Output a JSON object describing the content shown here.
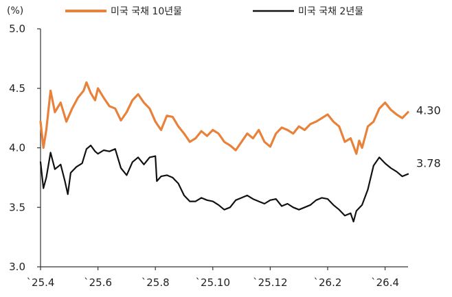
{
  "chart_data": {
    "type": "line",
    "unit_label": "(%)",
    "ylim": [
      3.0,
      5.0
    ],
    "y_ticks": [
      {
        "value": 3.0,
        "label": "3.0"
      },
      {
        "value": 3.5,
        "label": "3.5"
      },
      {
        "value": 4.0,
        "label": "4.0"
      },
      {
        "value": 4.5,
        "label": "4.5"
      },
      {
        "value": 5.0,
        "label": "5.0"
      }
    ],
    "x_ticks": [
      {
        "x": 0,
        "label": "`25.4"
      },
      {
        "x": 2,
        "label": "`25.6"
      },
      {
        "x": 4,
        "label": "`25.8"
      },
      {
        "x": 6,
        "label": "`25.10"
      },
      {
        "x": 8,
        "label": "`25.12"
      },
      {
        "x": 10,
        "label": "`26.2"
      },
      {
        "x": 12,
        "label": "`26.4"
      }
    ],
    "xlim": [
      0,
      12.8
    ],
    "grid": false,
    "legend_position": "top",
    "series": [
      {
        "name": "미국 국채 10년물",
        "color": "#E8823A",
        "end_label": "4.30",
        "points": [
          [
            0.0,
            4.22
          ],
          [
            0.1,
            4.0
          ],
          [
            0.2,
            4.15
          ],
          [
            0.35,
            4.48
          ],
          [
            0.5,
            4.3
          ],
          [
            0.7,
            4.38
          ],
          [
            0.9,
            4.22
          ],
          [
            1.1,
            4.33
          ],
          [
            1.3,
            4.42
          ],
          [
            1.5,
            4.48
          ],
          [
            1.6,
            4.55
          ],
          [
            1.75,
            4.46
          ],
          [
            1.9,
            4.4
          ],
          [
            2.0,
            4.5
          ],
          [
            2.2,
            4.42
          ],
          [
            2.4,
            4.35
          ],
          [
            2.6,
            4.33
          ],
          [
            2.8,
            4.23
          ],
          [
            3.0,
            4.3
          ],
          [
            3.2,
            4.4
          ],
          [
            3.4,
            4.45
          ],
          [
            3.6,
            4.38
          ],
          [
            3.8,
            4.33
          ],
          [
            4.0,
            4.22
          ],
          [
            4.2,
            4.15
          ],
          [
            4.4,
            4.27
          ],
          [
            4.6,
            4.26
          ],
          [
            4.8,
            4.18
          ],
          [
            5.0,
            4.12
          ],
          [
            5.2,
            4.05
          ],
          [
            5.4,
            4.08
          ],
          [
            5.6,
            4.14
          ],
          [
            5.8,
            4.1
          ],
          [
            6.0,
            4.15
          ],
          [
            6.2,
            4.12
          ],
          [
            6.4,
            4.05
          ],
          [
            6.6,
            4.02
          ],
          [
            6.8,
            3.98
          ],
          [
            7.0,
            4.05
          ],
          [
            7.2,
            4.12
          ],
          [
            7.4,
            4.08
          ],
          [
            7.6,
            4.15
          ],
          [
            7.8,
            4.05
          ],
          [
            8.0,
            4.01
          ],
          [
            8.2,
            4.12
          ],
          [
            8.4,
            4.17
          ],
          [
            8.6,
            4.15
          ],
          [
            8.8,
            4.12
          ],
          [
            9.0,
            4.18
          ],
          [
            9.2,
            4.15
          ],
          [
            9.4,
            4.2
          ],
          [
            9.6,
            4.22
          ],
          [
            9.8,
            4.25
          ],
          [
            10.0,
            4.28
          ],
          [
            10.2,
            4.22
          ],
          [
            10.4,
            4.18
          ],
          [
            10.6,
            4.05
          ],
          [
            10.8,
            4.08
          ],
          [
            11.0,
            3.95
          ],
          [
            11.1,
            4.06
          ],
          [
            11.2,
            4.0
          ],
          [
            11.4,
            4.18
          ],
          [
            11.6,
            4.22
          ],
          [
            11.8,
            4.33
          ],
          [
            12.0,
            4.38
          ],
          [
            12.2,
            4.32
          ],
          [
            12.4,
            4.28
          ],
          [
            12.6,
            4.25
          ],
          [
            12.8,
            4.3
          ]
        ]
      },
      {
        "name": "미국 국채 2년물",
        "color": "#111111",
        "end_label": "3.78",
        "points": [
          [
            0.0,
            3.88
          ],
          [
            0.1,
            3.66
          ],
          [
            0.2,
            3.75
          ],
          [
            0.35,
            3.96
          ],
          [
            0.5,
            3.82
          ],
          [
            0.7,
            3.86
          ],
          [
            0.85,
            3.72
          ],
          [
            0.95,
            3.61
          ],
          [
            1.05,
            3.79
          ],
          [
            1.25,
            3.84
          ],
          [
            1.45,
            3.87
          ],
          [
            1.6,
            3.99
          ],
          [
            1.75,
            4.02
          ],
          [
            1.9,
            3.97
          ],
          [
            2.0,
            3.95
          ],
          [
            2.2,
            3.98
          ],
          [
            2.4,
            3.97
          ],
          [
            2.6,
            3.99
          ],
          [
            2.8,
            3.83
          ],
          [
            3.0,
            3.77
          ],
          [
            3.2,
            3.88
          ],
          [
            3.4,
            3.92
          ],
          [
            3.6,
            3.86
          ],
          [
            3.8,
            3.92
          ],
          [
            4.0,
            3.93
          ],
          [
            4.05,
            3.72
          ],
          [
            4.2,
            3.76
          ],
          [
            4.4,
            3.77
          ],
          [
            4.6,
            3.75
          ],
          [
            4.8,
            3.7
          ],
          [
            5.0,
            3.6
          ],
          [
            5.2,
            3.55
          ],
          [
            5.4,
            3.55
          ],
          [
            5.6,
            3.58
          ],
          [
            5.8,
            3.56
          ],
          [
            6.0,
            3.55
          ],
          [
            6.2,
            3.52
          ],
          [
            6.4,
            3.48
          ],
          [
            6.6,
            3.5
          ],
          [
            6.8,
            3.56
          ],
          [
            7.0,
            3.58
          ],
          [
            7.2,
            3.6
          ],
          [
            7.4,
            3.57
          ],
          [
            7.6,
            3.55
          ],
          [
            7.8,
            3.53
          ],
          [
            8.0,
            3.56
          ],
          [
            8.2,
            3.57
          ],
          [
            8.4,
            3.51
          ],
          [
            8.6,
            3.53
          ],
          [
            8.8,
            3.5
          ],
          [
            9.0,
            3.48
          ],
          [
            9.2,
            3.5
          ],
          [
            9.4,
            3.52
          ],
          [
            9.6,
            3.56
          ],
          [
            9.8,
            3.58
          ],
          [
            10.0,
            3.57
          ],
          [
            10.2,
            3.52
          ],
          [
            10.4,
            3.48
          ],
          [
            10.6,
            3.43
          ],
          [
            10.8,
            3.45
          ],
          [
            10.9,
            3.38
          ],
          [
            11.0,
            3.47
          ],
          [
            11.2,
            3.52
          ],
          [
            11.4,
            3.65
          ],
          [
            11.6,
            3.85
          ],
          [
            11.8,
            3.92
          ],
          [
            12.0,
            3.87
          ],
          [
            12.2,
            3.83
          ],
          [
            12.4,
            3.8
          ],
          [
            12.6,
            3.76
          ],
          [
            12.8,
            3.78
          ]
        ]
      }
    ]
  }
}
